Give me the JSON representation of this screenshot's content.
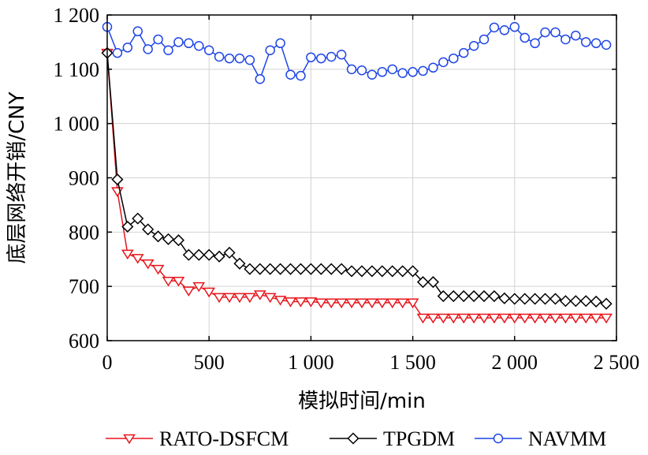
{
  "chart_data": {
    "type": "line",
    "xlabel": "模拟时间/min",
    "ylabel": "底层网络开销/CNY",
    "xlim": [
      0,
      2500
    ],
    "ylim": [
      600,
      1200
    ],
    "xticks": [
      0,
      500,
      1000,
      1500,
      2000,
      2500
    ],
    "yticks": [
      600,
      700,
      800,
      900,
      1000,
      1100,
      1200
    ],
    "xtick_labels": [
      "0",
      "500",
      "1 000",
      "1 500",
      "2 000",
      "2 500"
    ],
    "ytick_labels": [
      "600",
      "700",
      "800",
      "900",
      "1 000",
      "1 100",
      "1 200"
    ],
    "grid": true,
    "legend_position": "bottom",
    "series": [
      {
        "name": "RATO-DSFCM",
        "color": "#e8151b",
        "marker": "triangle-down",
        "x": [
          0,
          50,
          100,
          150,
          200,
          250,
          300,
          350,
          400,
          450,
          500,
          550,
          600,
          650,
          700,
          750,
          800,
          850,
          900,
          950,
          1000,
          1050,
          1100,
          1150,
          1200,
          1250,
          1300,
          1350,
          1400,
          1450,
          1500,
          1550,
          1600,
          1650,
          1700,
          1750,
          1800,
          1850,
          1900,
          1950,
          2000,
          2050,
          2100,
          2150,
          2200,
          2250,
          2300,
          2350,
          2400,
          2450
        ],
        "y": [
          1130,
          875,
          760,
          752,
          742,
          732,
          710,
          710,
          692,
          700,
          690,
          680,
          680,
          680,
          680,
          685,
          680,
          675,
          672,
          672,
          672,
          670,
          670,
          670,
          670,
          670,
          670,
          670,
          670,
          670,
          670,
          642,
          642,
          642,
          642,
          642,
          642,
          642,
          642,
          642,
          642,
          642,
          642,
          642,
          642,
          642,
          642,
          642,
          642,
          642
        ]
      },
      {
        "name": "TPGDM",
        "color": "#000000",
        "marker": "diamond",
        "x": [
          0,
          50,
          100,
          150,
          200,
          250,
          300,
          350,
          400,
          450,
          500,
          550,
          600,
          650,
          700,
          750,
          800,
          850,
          900,
          950,
          1000,
          1050,
          1100,
          1150,
          1200,
          1250,
          1300,
          1350,
          1400,
          1450,
          1500,
          1550,
          1600,
          1650,
          1700,
          1750,
          1800,
          1850,
          1900,
          1950,
          2000,
          2050,
          2100,
          2150,
          2200,
          2250,
          2300,
          2350,
          2400,
          2450
        ],
        "y": [
          1130,
          897,
          810,
          825,
          805,
          792,
          787,
          785,
          758,
          758,
          758,
          755,
          762,
          742,
          732,
          732,
          732,
          732,
          732,
          732,
          732,
          732,
          732,
          732,
          728,
          728,
          728,
          728,
          728,
          728,
          728,
          708,
          708,
          682,
          682,
          682,
          682,
          682,
          682,
          678,
          677,
          677,
          677,
          677,
          677,
          673,
          673,
          673,
          672,
          668
        ]
      },
      {
        "name": "NAVMM",
        "color": "#1f45e6",
        "marker": "circle",
        "x": [
          0,
          50,
          100,
          150,
          200,
          250,
          300,
          350,
          400,
          450,
          500,
          550,
          600,
          650,
          700,
          750,
          800,
          850,
          900,
          950,
          1000,
          1050,
          1100,
          1150,
          1200,
          1250,
          1300,
          1350,
          1400,
          1450,
          1500,
          1550,
          1600,
          1650,
          1700,
          1750,
          1800,
          1850,
          1900,
          1950,
          2000,
          2050,
          2100,
          2150,
          2200,
          2250,
          2300,
          2350,
          2400,
          2450
        ],
        "y": [
          1178,
          1130,
          1140,
          1170,
          1137,
          1155,
          1135,
          1150,
          1148,
          1143,
          1135,
          1123,
          1120,
          1120,
          1117,
          1082,
          1135,
          1148,
          1090,
          1088,
          1122,
          1120,
          1123,
          1127,
          1100,
          1098,
          1090,
          1095,
          1100,
          1093,
          1095,
          1097,
          1103,
          1113,
          1120,
          1130,
          1143,
          1155,
          1177,
          1172,
          1178,
          1158,
          1148,
          1168,
          1168,
          1155,
          1162,
          1150,
          1148,
          1145
        ]
      }
    ]
  }
}
